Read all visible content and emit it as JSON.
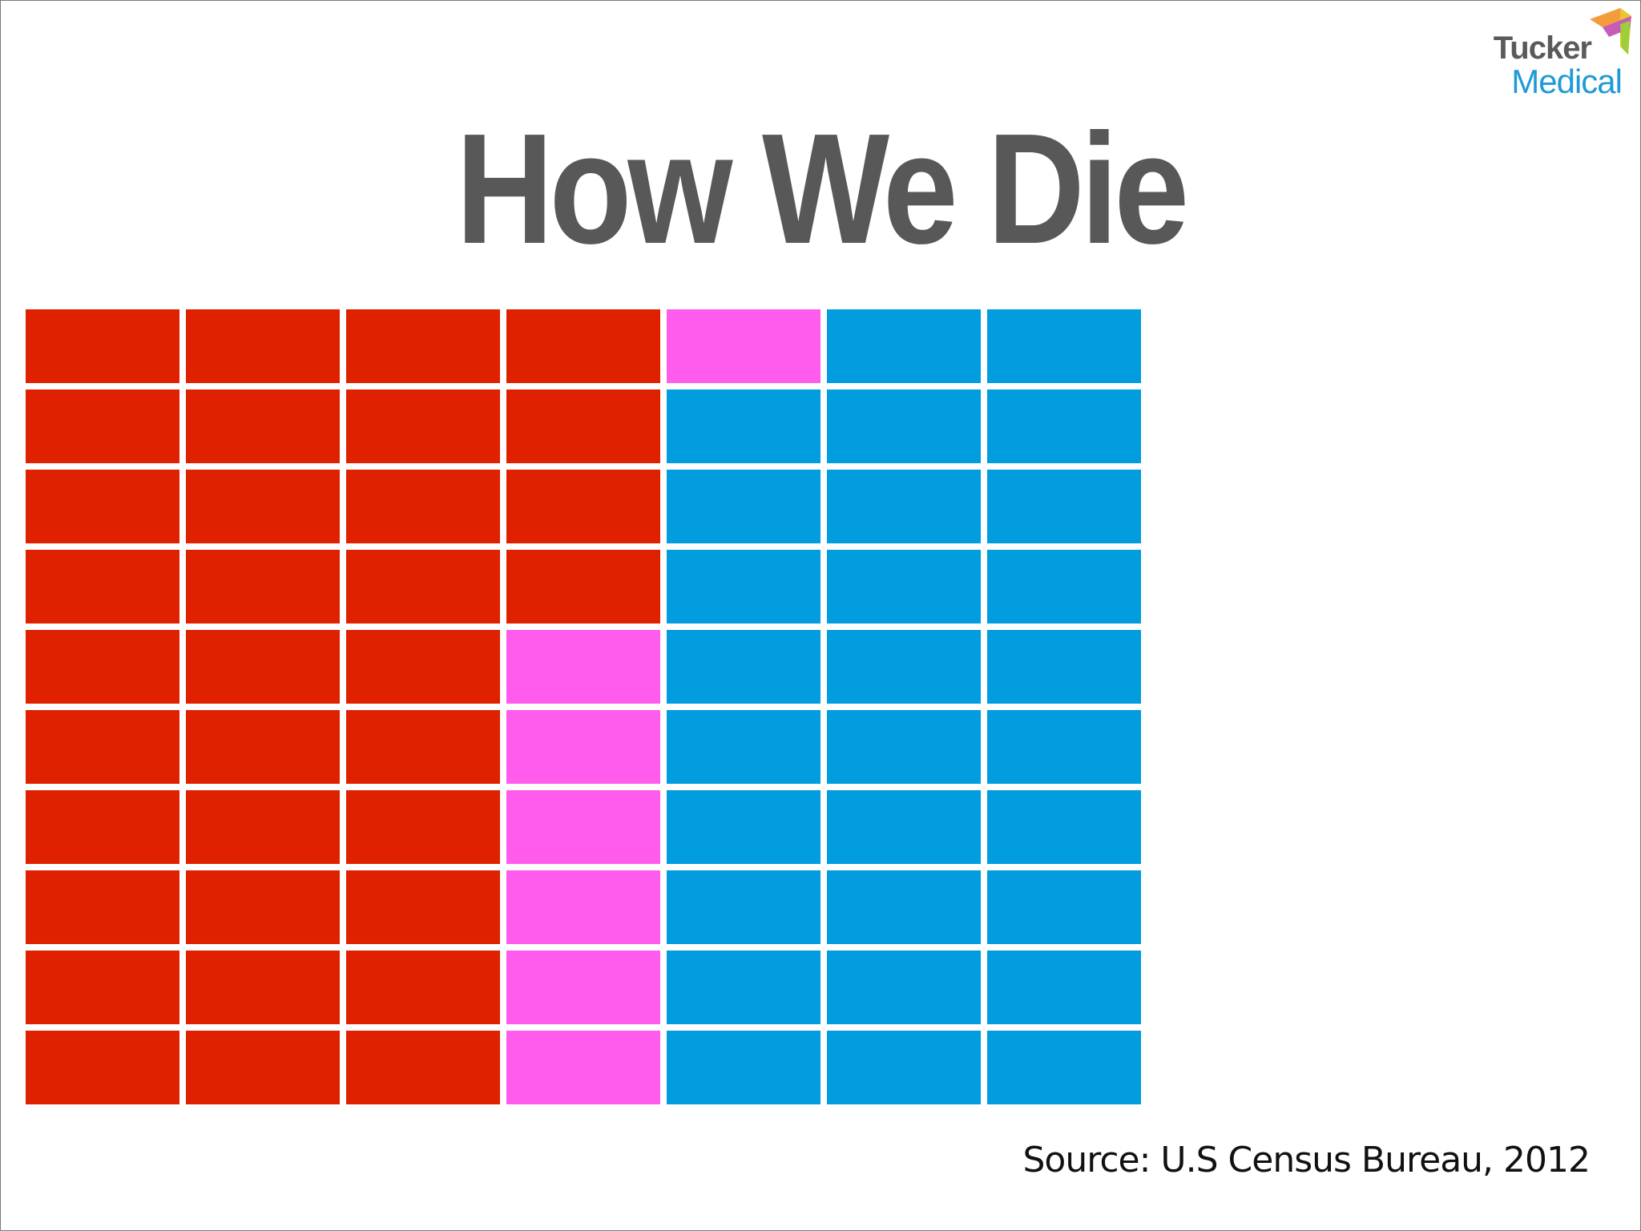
{
  "logo": {
    "line1": "Tucker",
    "line2": "Medical",
    "colors": {
      "text_dark": "#5a5a5a",
      "text_blue": "#1f9ad8"
    }
  },
  "title": "How We Die",
  "chart_data": {
    "type": "waffle",
    "title": "How We Die",
    "rows": 10,
    "columns": 7,
    "total_cells": 70,
    "fill_order": "column-major, top-to-bottom",
    "segments": [
      {
        "count": 34,
        "color": "#e02100"
      },
      {
        "count": 7,
        "color": "#ff5ced"
      },
      {
        "count": 29,
        "color": "#019dde"
      }
    ]
  },
  "source": "Source: U.S Census Bureau, 2012"
}
